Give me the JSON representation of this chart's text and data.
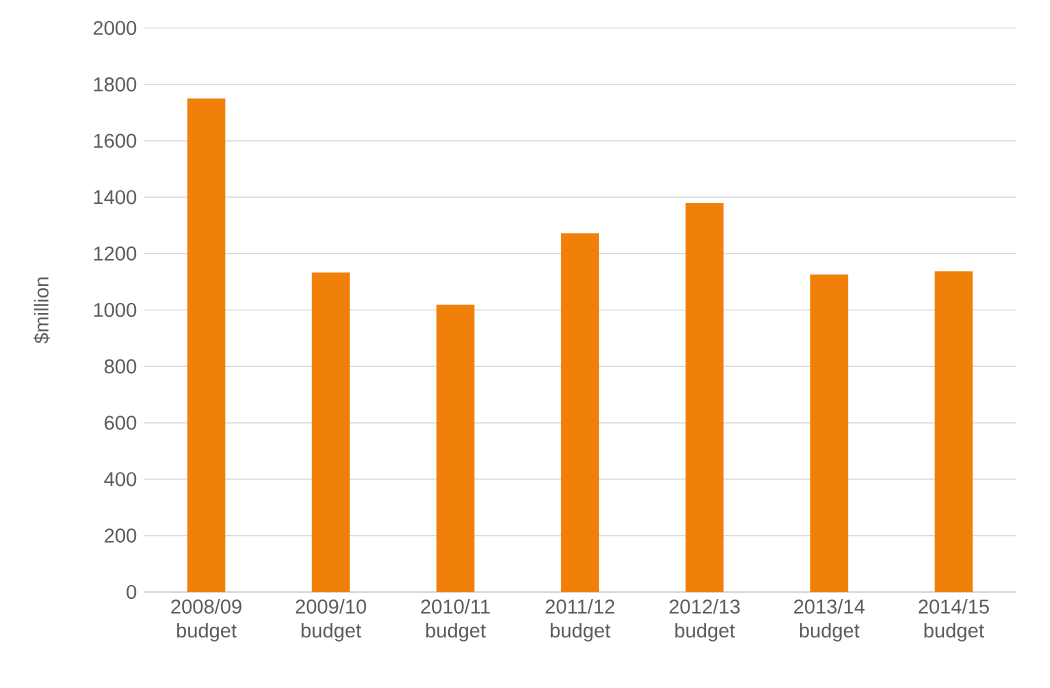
{
  "chart_data": {
    "type": "bar",
    "ylabel": "$million",
    "categories": [
      "2008/09 budget",
      "2009/10 budget",
      "2010/11 budget",
      "2011/12 budget",
      "2012/13 budget",
      "2013/14 budget",
      "2014/15 budget"
    ],
    "values": [
      1750,
      1133,
      1019,
      1272,
      1379,
      1126,
      1137
    ],
    "color": "#f0800a",
    "ylim": [
      0,
      2000
    ],
    "yticks": [
      0,
      200,
      400,
      600,
      800,
      1000,
      1200,
      1400,
      1600,
      1800,
      2000
    ],
    "grid": "y"
  }
}
